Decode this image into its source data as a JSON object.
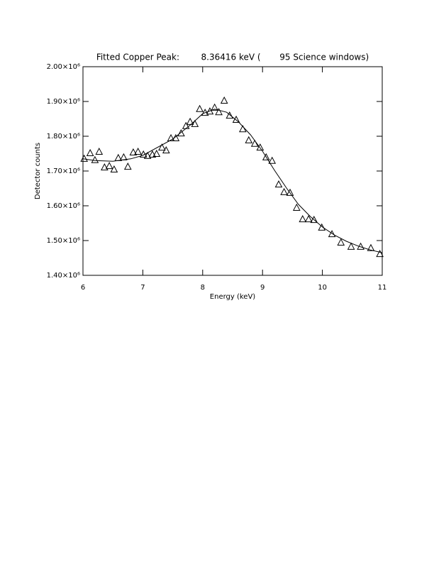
{
  "chart_data": {
    "type": "scatter",
    "title": "Fitted Copper Peak:        8.36416 keV (       95 Science windows)",
    "x_label": "Energy (keV)",
    "y_label": "Detector counts",
    "xlim": [
      6,
      11
    ],
    "xticks": [
      6,
      7,
      8,
      9,
      10,
      11
    ],
    "ylim": [
      1400000,
      2000000
    ],
    "yticks": [
      {
        "value": 1400000,
        "label": "1.40×10⁶"
      },
      {
        "value": 1500000,
        "label": "1.50×10⁶"
      },
      {
        "value": 1600000,
        "label": "1.60×10⁶"
      },
      {
        "value": 1700000,
        "label": "1.70×10⁶"
      },
      {
        "value": 1800000,
        "label": "1.80×10⁶"
      },
      {
        "value": 1900000,
        "label": "1.90×10⁶"
      },
      {
        "value": 2000000,
        "label": "2.00×10⁶"
      }
    ],
    "series": [
      {
        "marker": "triangle",
        "color": "#000000",
        "x": [
          6.02,
          6.12,
          6.2,
          6.27,
          6.36,
          6.44,
          6.52,
          6.59,
          6.68,
          6.75,
          6.84,
          6.92,
          7.01,
          7.08,
          7.16,
          7.23,
          7.32,
          7.39,
          7.47,
          7.55,
          7.64,
          7.72,
          7.79,
          7.87,
          7.95,
          8.04,
          8.12,
          8.2,
          8.27,
          8.36,
          8.45,
          8.56,
          8.67,
          8.77,
          8.87,
          8.96,
          9.06,
          9.16,
          9.27,
          9.36,
          9.46,
          9.57,
          9.67,
          9.77,
          9.86,
          9.99,
          10.16,
          10.31,
          10.48,
          10.64,
          10.81,
          10.96
        ],
        "values": [
          1735000,
          1751000,
          1731000,
          1755000,
          1710000,
          1714000,
          1704000,
          1737000,
          1739000,
          1712000,
          1753000,
          1755000,
          1747000,
          1743000,
          1747000,
          1749000,
          1767000,
          1759000,
          1794000,
          1794000,
          1808000,
          1829000,
          1841000,
          1835000,
          1878000,
          1867000,
          1871000,
          1882000,
          1869000,
          1902000,
          1859000,
          1847000,
          1820000,
          1788000,
          1778000,
          1767000,
          1739000,
          1729000,
          1661000,
          1639000,
          1637000,
          1594000,
          1561000,
          1561000,
          1559000,
          1537000,
          1518000,
          1494000,
          1482000,
          1482000,
          1478000,
          1461000
        ]
      },
      {
        "marker": "line",
        "color": "#000000",
        "x": [
          6,
          6.2,
          6.5,
          6.8,
          7,
          7.5,
          7.8,
          8,
          8.2,
          8.4,
          8.6,
          8.8,
          9,
          9.2,
          9.4,
          9.6,
          9.8,
          10,
          10.2,
          10.4,
          10.6,
          10.8,
          11
        ],
        "values": [
          1735000,
          1730000,
          1728000,
          1735000,
          1745000,
          1792000,
          1833000,
          1865000,
          1878000,
          1869000,
          1841000,
          1804000,
          1757000,
          1702000,
          1651000,
          1604000,
          1569000,
          1539000,
          1516000,
          1498000,
          1484000,
          1473000,
          1465000
        ]
      }
    ]
  }
}
